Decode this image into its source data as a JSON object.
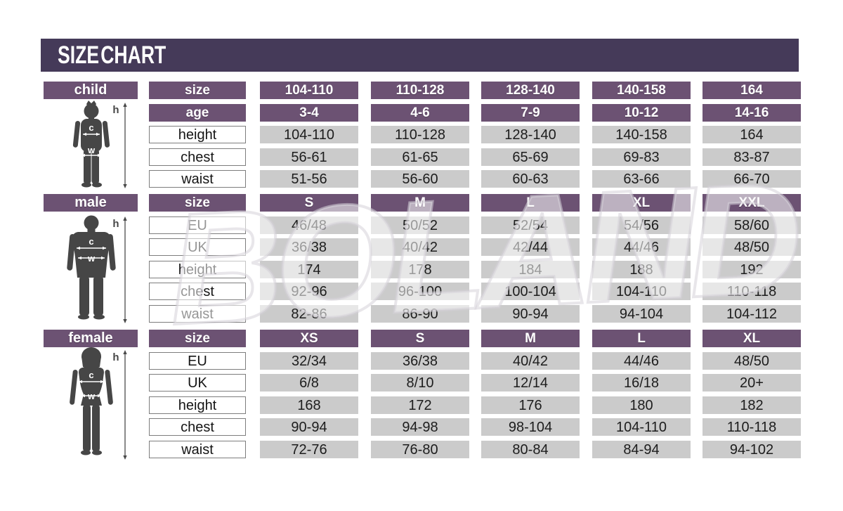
{
  "title": "SIZE CHART",
  "watermark": "BOLAND",
  "colors": {
    "title_bar": "#453a59",
    "header_purple": "#6c5273",
    "cell_gray": "#cbcbcb",
    "cell_text": "#1d1d1d",
    "figure_gray": "#464646",
    "label_border": "#7d7d7d"
  },
  "figure_labels": {
    "height": "h",
    "chest": "c",
    "waist": "w"
  },
  "chart_data": [
    {
      "type": "table",
      "title": "child",
      "rows": [
        {
          "label": "size",
          "header": true,
          "values": [
            "104-110",
            "110-128",
            "128-140",
            "140-158",
            "164"
          ]
        },
        {
          "label": "age",
          "header": true,
          "values": [
            "3-4",
            "4-6",
            "7-9",
            "10-12",
            "14-16"
          ]
        },
        {
          "label": "height",
          "header": false,
          "values": [
            "104-110",
            "110-128",
            "128-140",
            "140-158",
            "164"
          ]
        },
        {
          "label": "chest",
          "header": false,
          "values": [
            "56-61",
            "61-65",
            "65-69",
            "69-83",
            "83-87"
          ]
        },
        {
          "label": "waist",
          "header": false,
          "values": [
            "51-56",
            "56-60",
            "60-63",
            "63-66",
            "66-70"
          ]
        }
      ]
    },
    {
      "type": "table",
      "title": "male",
      "rows": [
        {
          "label": "size",
          "header": true,
          "values": [
            "S",
            "M",
            "L",
            "XL",
            "XXL"
          ]
        },
        {
          "label": "EU",
          "header": false,
          "values": [
            "46/48",
            "50/52",
            "52/54",
            "54/56",
            "58/60"
          ]
        },
        {
          "label": "UK",
          "header": false,
          "values": [
            "36/38",
            "40/42",
            "42/44",
            "44/46",
            "48/50"
          ]
        },
        {
          "label": "height",
          "header": false,
          "values": [
            "174",
            "178",
            "184",
            "188",
            "192"
          ]
        },
        {
          "label": "chest",
          "header": false,
          "values": [
            "92-96",
            "96-100",
            "100-104",
            "104-110",
            "110-118"
          ]
        },
        {
          "label": "waist",
          "header": false,
          "values": [
            "82-86",
            "86-90",
            "90-94",
            "94-104",
            "104-112"
          ]
        }
      ]
    },
    {
      "type": "table",
      "title": "female",
      "rows": [
        {
          "label": "size",
          "header": true,
          "values": [
            "XS",
            "S",
            "M",
            "L",
            "XL"
          ]
        },
        {
          "label": "EU",
          "header": false,
          "values": [
            "32/34",
            "36/38",
            "40/42",
            "44/46",
            "48/50"
          ]
        },
        {
          "label": "UK",
          "header": false,
          "values": [
            "6/8",
            "8/10",
            "12/14",
            "16/18",
            "20+"
          ]
        },
        {
          "label": "height",
          "header": false,
          "values": [
            "168",
            "172",
            "176",
            "180",
            "182"
          ]
        },
        {
          "label": "chest",
          "header": false,
          "values": [
            "90-94",
            "94-98",
            "98-104",
            "104-110",
            "110-118"
          ]
        },
        {
          "label": "waist",
          "header": false,
          "values": [
            "72-76",
            "76-80",
            "80-84",
            "84-94",
            "94-102"
          ]
        }
      ]
    }
  ]
}
